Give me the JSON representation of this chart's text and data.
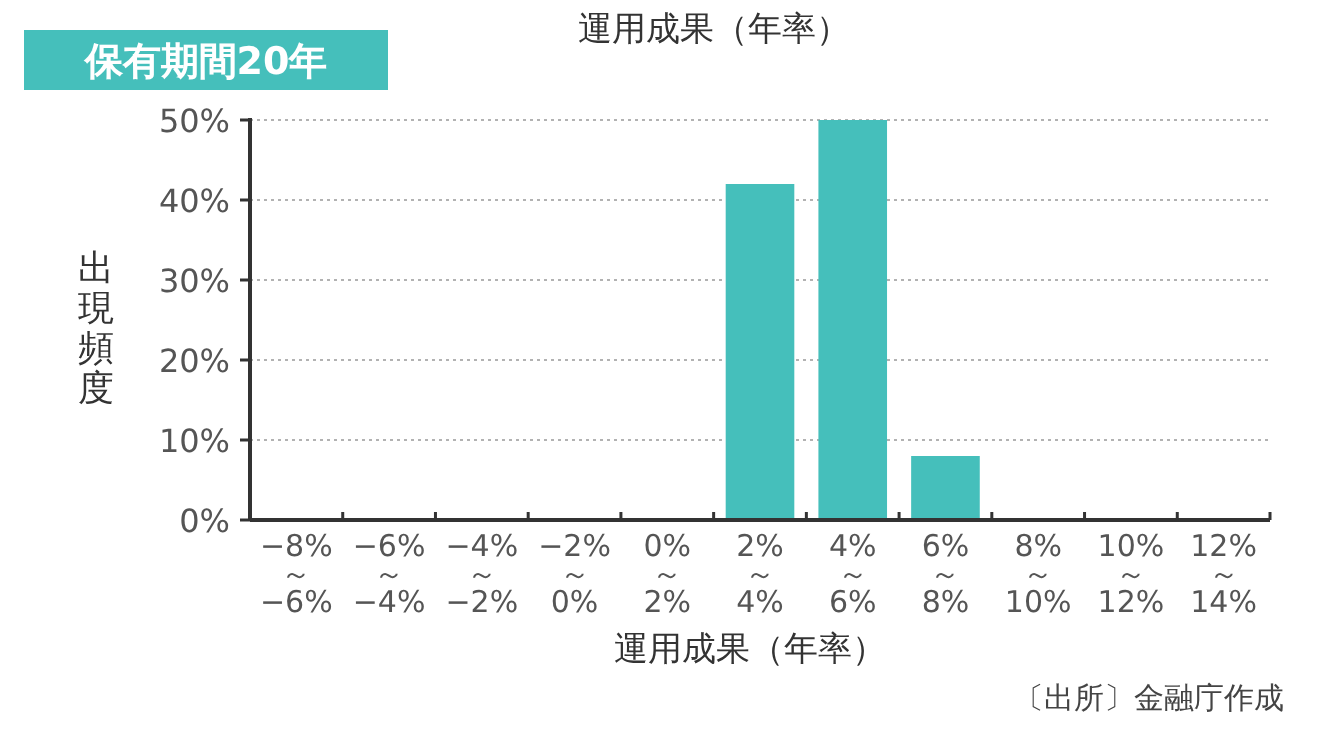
{
  "chart_data": {
    "type": "bar",
    "title": "保有期間20年",
    "subtitle": "運用成果（年率）",
    "xlabel": "運用成果（年率）",
    "ylabel": "出現頻度",
    "categories": [
      "−8%\n～\n−6%",
      "−6%\n～\n−4%",
      "−4%\n～\n−2%",
      "−2%\n～\n0%",
      "0%\n～\n2%",
      "2%\n～\n4%",
      "4%\n～\n6%",
      "6%\n～\n8%",
      "8%\n～\n10%",
      "10%\n～\n12%",
      "12%\n～\n14%"
    ],
    "values": [
      0,
      0,
      0,
      0,
      0,
      42,
      50,
      8,
      0,
      0,
      0
    ],
    "color": "#45bfbb",
    "ylim": [
      0,
      50
    ],
    "yticks": [
      {
        "value": 0,
        "label": "0%"
      },
      {
        "value": 10,
        "label": "10%"
      },
      {
        "value": 20,
        "label": "20%"
      },
      {
        "value": 30,
        "label": "30%"
      },
      {
        "value": 40,
        "label": "40%"
      },
      {
        "value": 50,
        "label": "50%"
      }
    ],
    "grid": "y",
    "annotations": [
      "〔出所〕金融庁作成"
    ]
  }
}
